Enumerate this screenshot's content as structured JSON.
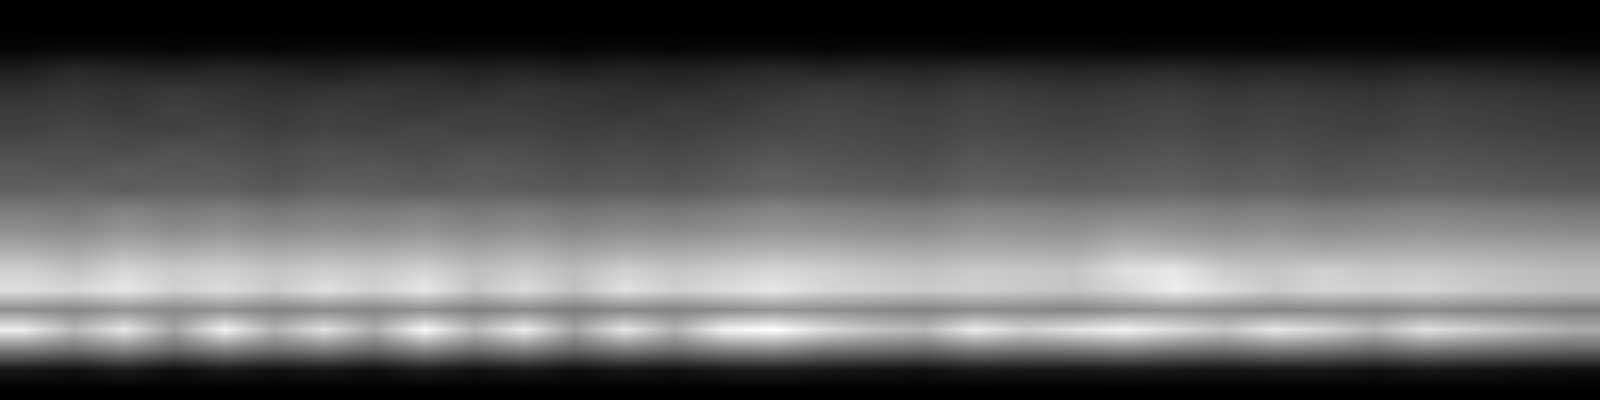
{
  "chart_data": {
    "type": "heatmap",
    "color": "gray",
    "tick_labels": false,
    "cells": [
      [
        0,
        0,
        0,
        0,
        0,
        0,
        0,
        0,
        0,
        0,
        0,
        0,
        0,
        0,
        0,
        0,
        0,
        0,
        0,
        0,
        0,
        0,
        0,
        0,
        0,
        0,
        0,
        0,
        0,
        0,
        0,
        0
      ],
      [
        0,
        0,
        0,
        0,
        0,
        0,
        0,
        0,
        0,
        0,
        0,
        0,
        0,
        0,
        0,
        0,
        0,
        0,
        0,
        0,
        0,
        0,
        0,
        0,
        0,
        0,
        0,
        0,
        0,
        0,
        0,
        0
      ],
      [
        2,
        3,
        3,
        2,
        3,
        2,
        3,
        3,
        2,
        3,
        3,
        2,
        3,
        2,
        3,
        3,
        2,
        3,
        3,
        2,
        3,
        3,
        2,
        3,
        3,
        2,
        3,
        3,
        2,
        3,
        3,
        2
      ],
      [
        10,
        14,
        12,
        11,
        13,
        12,
        10,
        12,
        13,
        11,
        12,
        10,
        12,
        11,
        12,
        14,
        12,
        13,
        12,
        14,
        13,
        12,
        13,
        14,
        12,
        13,
        12,
        11,
        13,
        12,
        11,
        10
      ],
      [
        16,
        18,
        17,
        19,
        18,
        16,
        17,
        18,
        17,
        16,
        18,
        17,
        16,
        15,
        17,
        18,
        20,
        19,
        18,
        20,
        19,
        18,
        19,
        20,
        18,
        19,
        18,
        17,
        19,
        18,
        17,
        16
      ],
      [
        20,
        21,
        19,
        22,
        20,
        19,
        21,
        20,
        19,
        21,
        20,
        19,
        18,
        20,
        19,
        22,
        23,
        22,
        21,
        23,
        22,
        21,
        22,
        23,
        21,
        22,
        21,
        20,
        22,
        21,
        20,
        19
      ],
      [
        22,
        24,
        23,
        22,
        24,
        21,
        23,
        22,
        24,
        22,
        23,
        21,
        22,
        21,
        23,
        24,
        25,
        24,
        23,
        25,
        24,
        23,
        24,
        25,
        23,
        24,
        23,
        22,
        24,
        23,
        22,
        21
      ],
      [
        26,
        27,
        25,
        28,
        26,
        25,
        27,
        26,
        25,
        27,
        26,
        24,
        25,
        24,
        26,
        28,
        27,
        26,
        25,
        28,
        27,
        26,
        27,
        28,
        26,
        27,
        25,
        26,
        27,
        26,
        25,
        24
      ],
      [
        30,
        28,
        31,
        29,
        30,
        27,
        29,
        30,
        28,
        30,
        29,
        27,
        28,
        27,
        29,
        32,
        30,
        29,
        28,
        31,
        30,
        29,
        30,
        31,
        29,
        30,
        28,
        29,
        30,
        29,
        28,
        27
      ],
      [
        32,
        34,
        31,
        33,
        32,
        30,
        33,
        32,
        31,
        32,
        31,
        30,
        31,
        30,
        32,
        34,
        33,
        32,
        31,
        34,
        33,
        32,
        33,
        34,
        32,
        33,
        31,
        32,
        33,
        32,
        31,
        30
      ],
      [
        42,
        40,
        44,
        41,
        43,
        40,
        42,
        41,
        43,
        40,
        42,
        39,
        41,
        40,
        42,
        45,
        43,
        42,
        41,
        44,
        43,
        42,
        43,
        44,
        42,
        43,
        41,
        42,
        43,
        42,
        41,
        40
      ],
      [
        48,
        46,
        50,
        47,
        49,
        46,
        48,
        47,
        49,
        46,
        48,
        45,
        47,
        46,
        48,
        50,
        49,
        48,
        47,
        50,
        49,
        48,
        52,
        50,
        48,
        49,
        47,
        48,
        49,
        48,
        47,
        46
      ],
      [
        58,
        55,
        60,
        57,
        59,
        56,
        58,
        57,
        59,
        55,
        58,
        54,
        57,
        56,
        58,
        60,
        59,
        57,
        56,
        58,
        57,
        56,
        62,
        60,
        57,
        58,
        56,
        57,
        58,
        57,
        56,
        55
      ],
      [
        70,
        65,
        72,
        68,
        70,
        66,
        69,
        67,
        71,
        64,
        68,
        63,
        70,
        66,
        69,
        72,
        70,
        67,
        65,
        68,
        67,
        66,
        75,
        78,
        68,
        66,
        70,
        67,
        68,
        66,
        64,
        62
      ],
      [
        75,
        72,
        78,
        70,
        74,
        68,
        76,
        70,
        78,
        66,
        74,
        65,
        76,
        70,
        74,
        78,
        72,
        70,
        68,
        70,
        68,
        66,
        72,
        80,
        74,
        68,
        72,
        70,
        72,
        68,
        66,
        64
      ],
      [
        48,
        45,
        50,
        46,
        49,
        44,
        47,
        45,
        49,
        43,
        47,
        42,
        46,
        44,
        47,
        50,
        48,
        46,
        44,
        47,
        46,
        44,
        48,
        50,
        47,
        45,
        46,
        45,
        47,
        45,
        44,
        42
      ],
      [
        80,
        62,
        78,
        55,
        82,
        60,
        76,
        58,
        84,
        62,
        80,
        55,
        78,
        60,
        82,
        86,
        74,
        66,
        62,
        80,
        70,
        76,
        82,
        74,
        66,
        78,
        72,
        62,
        76,
        70,
        64,
        58
      ],
      [
        42,
        38,
        45,
        36,
        44,
        38,
        42,
        36,
        46,
        38,
        44,
        35,
        42,
        38,
        44,
        46,
        40,
        38,
        36,
        42,
        40,
        41,
        44,
        40,
        38,
        42,
        40,
        36,
        41,
        38,
        36,
        34
      ],
      [
        8,
        6,
        10,
        5,
        9,
        6,
        8,
        5,
        10,
        6,
        9,
        5,
        8,
        6,
        9,
        10,
        8,
        7,
        6,
        9,
        8,
        8,
        9,
        8,
        7,
        8,
        8,
        6,
        8,
        7,
        6,
        5
      ],
      [
        0,
        0,
        0,
        0,
        0,
        0,
        0,
        0,
        0,
        0,
        0,
        0,
        0,
        0,
        0,
        0,
        0,
        0,
        0,
        0,
        0,
        0,
        0,
        0,
        0,
        0,
        0,
        0,
        0,
        0,
        0,
        0
      ]
    ]
  }
}
